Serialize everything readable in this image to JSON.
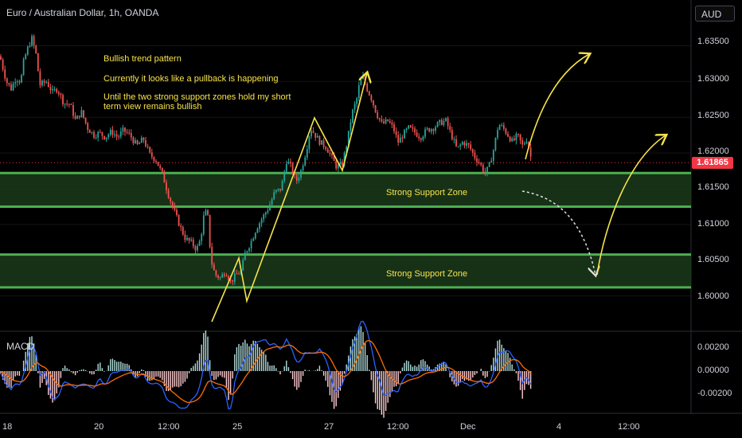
{
  "header": {
    "symbol_title": "Euro / Australian Dollar, 1h, OANDA",
    "currency_button": "AUD"
  },
  "annotations": {
    "line1": "Bullish trend pattern",
    "line2": "Currently it looks like a pullback is happening",
    "line3": "Until the two strong support zones hold my short",
    "line4": "term view remains bullish",
    "zone_upper_label": "Strong Support Zone",
    "zone_lower_label": "Strong Support Zone"
  },
  "price_axis": {
    "ticks": [
      "1.63500",
      "1.63000",
      "1.62500",
      "1.62000",
      "1.61500",
      "1.61000",
      "1.60500",
      "1.60000"
    ],
    "current_price": "1.61865"
  },
  "macd": {
    "label": "MACD",
    "ticks": [
      "0.00200",
      "0.00000",
      "-0.00200"
    ]
  },
  "time_axis": {
    "ticks": [
      "18",
      "20",
      "12:00",
      "25",
      "27",
      "12:00",
      "Dec",
      "4",
      "12:00"
    ]
  },
  "colors": {
    "background": "#000000",
    "bull_candle": "#26a69a",
    "bear_candle": "#ef5350",
    "zone_line": "#4caf50",
    "zone_fill": "#1b3a1b",
    "annotation": "#f7e34b",
    "macd_line": "#2962ff",
    "signal_line": "#ff6d00",
    "price_tag": "#f23645"
  },
  "chart_data": {
    "type": "candlestick",
    "y_range": [
      1.5964,
      1.6385
    ],
    "support_zones": [
      {
        "top": 1.6172,
        "bottom": 1.6125
      },
      {
        "top": 1.6058,
        "bottom": 1.6012
      }
    ],
    "price_path": [
      [
        0,
        1.6335
      ],
      [
        8,
        1.63
      ],
      [
        14,
        1.629
      ],
      [
        20,
        1.6305
      ],
      [
        26,
        1.63
      ],
      [
        30,
        1.633
      ],
      [
        36,
        1.635
      ],
      [
        40,
        1.636
      ],
      [
        45,
        1.634
      ],
      [
        50,
        1.6295
      ],
      [
        58,
        1.63
      ],
      [
        66,
        1.6285
      ],
      [
        72,
        1.629
      ],
      [
        80,
        1.627
      ],
      [
        88,
        1.6268
      ],
      [
        95,
        1.6245
      ],
      [
        102,
        1.6258
      ],
      [
        110,
        1.6235
      ],
      [
        118,
        1.6225
      ],
      [
        125,
        1.6228
      ],
      [
        132,
        1.6222
      ],
      [
        140,
        1.623
      ],
      [
        148,
        1.6222
      ],
      [
        155,
        1.6232
      ],
      [
        163,
        1.6225
      ],
      [
        172,
        1.621
      ],
      [
        180,
        1.622
      ],
      [
        188,
        1.6198
      ],
      [
        196,
        1.619
      ],
      [
        204,
        1.617
      ],
      [
        212,
        1.614
      ],
      [
        220,
        1.6115
      ],
      [
        227,
        1.6095
      ],
      [
        233,
        1.608
      ],
      [
        240,
        1.6075
      ],
      [
        247,
        1.6065
      ],
      [
        252,
        1.608
      ],
      [
        257,
        1.612
      ],
      [
        261,
        1.611
      ],
      [
        265,
        1.605
      ],
      [
        270,
        1.603
      ],
      [
        277,
        1.6025
      ],
      [
        283,
        1.6035
      ],
      [
        290,
        1.602
      ],
      [
        297,
        1.603
      ],
      [
        303,
        1.6035
      ],
      [
        308,
        1.606
      ],
      [
        315,
        1.6075
      ],
      [
        322,
        1.6095
      ],
      [
        330,
        1.611
      ],
      [
        338,
        1.6125
      ],
      [
        345,
        1.6145
      ],
      [
        353,
        1.615
      ],
      [
        360,
        1.619
      ],
      [
        366,
        1.618
      ],
      [
        372,
        1.616
      ],
      [
        378,
        1.6175
      ],
      [
        385,
        1.6205
      ],
      [
        390,
        1.6235
      ],
      [
        396,
        1.6225
      ],
      [
        402,
        1.6215
      ],
      [
        410,
        1.6208
      ],
      [
        416,
        1.6195
      ],
      [
        423,
        1.618
      ],
      [
        430,
        1.6185
      ],
      [
        436,
        1.6215
      ],
      [
        442,
        1.6255
      ],
      [
        448,
        1.6275
      ],
      [
        452,
        1.63
      ],
      [
        456,
        1.6305
      ],
      [
        461,
        1.629
      ],
      [
        467,
        1.6275
      ],
      [
        473,
        1.6255
      ],
      [
        480,
        1.624
      ],
      [
        487,
        1.6245
      ],
      [
        494,
        1.6235
      ],
      [
        500,
        1.6215
      ],
      [
        506,
        1.6225
      ],
      [
        513,
        1.6235
      ],
      [
        520,
        1.623
      ],
      [
        528,
        1.6222
      ],
      [
        536,
        1.6232
      ],
      [
        544,
        1.6235
      ],
      [
        552,
        1.6242
      ],
      [
        560,
        1.6245
      ],
      [
        567,
        1.6225
      ],
      [
        574,
        1.6205
      ],
      [
        581,
        1.6215
      ],
      [
        589,
        1.621
      ],
      [
        596,
        1.6195
      ],
      [
        603,
        1.6185
      ],
      [
        609,
        1.6172
      ],
      [
        614,
        1.618
      ],
      [
        620,
        1.6205
      ],
      [
        626,
        1.624
      ],
      [
        632,
        1.6235
      ],
      [
        638,
        1.6225
      ],
      [
        644,
        1.6215
      ],
      [
        650,
        1.6225
      ],
      [
        656,
        1.621
      ],
      [
        662,
        1.622
      ],
      [
        668,
        1.6187
      ]
    ]
  }
}
